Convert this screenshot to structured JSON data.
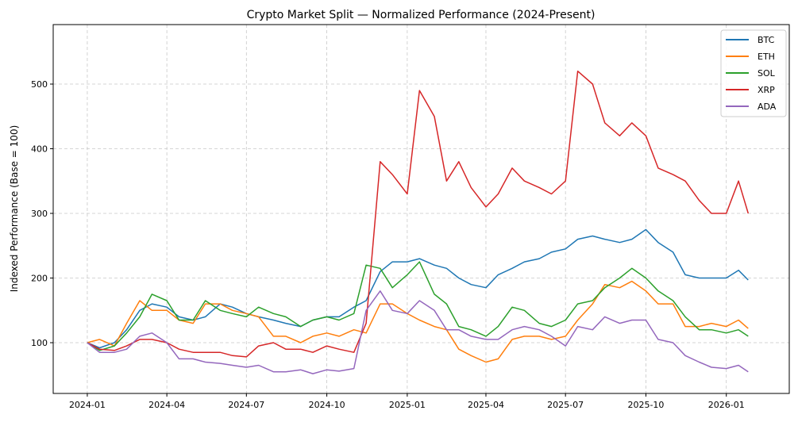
{
  "chart_data": {
    "type": "line",
    "title": "Crypto Market Split — Normalized Performance (2024-Present)",
    "xlabel": "",
    "ylabel": "Indexed Performance (Base = 100)",
    "xlim": [
      "2023-11-23",
      "2026-03-14"
    ],
    "ylim": [
      21.5,
      592
    ],
    "grid": true,
    "legend": "top-right",
    "xticks": [
      "2024-01",
      "2024-04",
      "2024-07",
      "2024-10",
      "2025-01",
      "2025-04",
      "2025-07",
      "2025-10",
      "2026-01"
    ],
    "yticks": [
      100,
      200,
      300,
      400,
      500
    ],
    "x": [
      "2024-01-01",
      "2024-01-15",
      "2024-02-01",
      "2024-02-15",
      "2024-03-01",
      "2024-03-15",
      "2024-04-01",
      "2024-04-15",
      "2024-05-01",
      "2024-05-15",
      "2024-06-01",
      "2024-06-15",
      "2024-07-01",
      "2024-07-15",
      "2024-08-01",
      "2024-08-15",
      "2024-09-01",
      "2024-09-15",
      "2024-10-01",
      "2024-10-15",
      "2024-11-01",
      "2024-11-15",
      "2024-12-01",
      "2024-12-15",
      "2025-01-01",
      "2025-01-15",
      "2025-02-01",
      "2025-02-15",
      "2025-03-01",
      "2025-03-15",
      "2025-04-01",
      "2025-04-15",
      "2025-05-01",
      "2025-05-15",
      "2025-06-01",
      "2025-06-15",
      "2025-07-01",
      "2025-07-15",
      "2025-08-01",
      "2025-08-15",
      "2025-09-01",
      "2025-09-15",
      "2025-10-01",
      "2025-10-15",
      "2025-11-01",
      "2025-11-15",
      "2025-12-01",
      "2025-12-15",
      "2026-01-01",
      "2026-01-15",
      "2026-01-26"
    ],
    "series": [
      {
        "name": "BTC",
        "color": "#1f77b4",
        "values": [
          100,
          92,
          100,
          120,
          150,
          160,
          155,
          140,
          135,
          140,
          160,
          155,
          145,
          140,
          135,
          130,
          125,
          135,
          140,
          140,
          155,
          165,
          210,
          225,
          225,
          230,
          220,
          215,
          200,
          190,
          185,
          205,
          215,
          225,
          230,
          240,
          245,
          260,
          265,
          260,
          255,
          260,
          275,
          255,
          240,
          205,
          200,
          200,
          200,
          212,
          197
        ]
      },
      {
        "name": "ETH",
        "color": "#ff7f0e",
        "values": [
          100,
          105,
          95,
          130,
          165,
          150,
          150,
          135,
          130,
          160,
          160,
          150,
          145,
          140,
          110,
          110,
          100,
          110,
          115,
          110,
          120,
          115,
          160,
          160,
          145,
          135,
          125,
          120,
          90,
          80,
          70,
          75,
          105,
          110,
          110,
          105,
          110,
          135,
          160,
          190,
          185,
          195,
          180,
          160,
          160,
          125,
          125,
          130,
          125,
          135,
          122
        ]
      },
      {
        "name": "SOL",
        "color": "#2ca02c",
        "values": [
          100,
          88,
          95,
          115,
          140,
          175,
          165,
          135,
          135,
          165,
          150,
          145,
          140,
          155,
          145,
          140,
          125,
          135,
          140,
          135,
          145,
          220,
          215,
          185,
          205,
          225,
          175,
          160,
          125,
          120,
          110,
          125,
          155,
          150,
          130,
          125,
          135,
          160,
          165,
          185,
          200,
          215,
          200,
          180,
          165,
          140,
          120,
          120,
          115,
          120,
          110
        ]
      },
      {
        "name": "XRP",
        "color": "#d62728",
        "values": [
          100,
          90,
          88,
          95,
          105,
          105,
          100,
          90,
          85,
          85,
          85,
          80,
          78,
          95,
          100,
          90,
          90,
          85,
          95,
          90,
          85,
          130,
          380,
          360,
          330,
          490,
          450,
          350,
          380,
          340,
          310,
          330,
          370,
          350,
          340,
          330,
          350,
          520,
          500,
          440,
          420,
          440,
          420,
          370,
          360,
          350,
          320,
          300,
          300,
          350,
          300
        ]
      },
      {
        "name": "ADA",
        "color": "#9467bd",
        "values": [
          100,
          85,
          85,
          90,
          110,
          115,
          100,
          75,
          75,
          70,
          68,
          65,
          62,
          65,
          55,
          55,
          58,
          52,
          58,
          56,
          60,
          150,
          180,
          150,
          145,
          165,
          150,
          120,
          120,
          110,
          105,
          105,
          120,
          125,
          120,
          110,
          95,
          125,
          120,
          140,
          130,
          135,
          135,
          105,
          100,
          80,
          70,
          62,
          60,
          65,
          55
        ]
      }
    ]
  }
}
